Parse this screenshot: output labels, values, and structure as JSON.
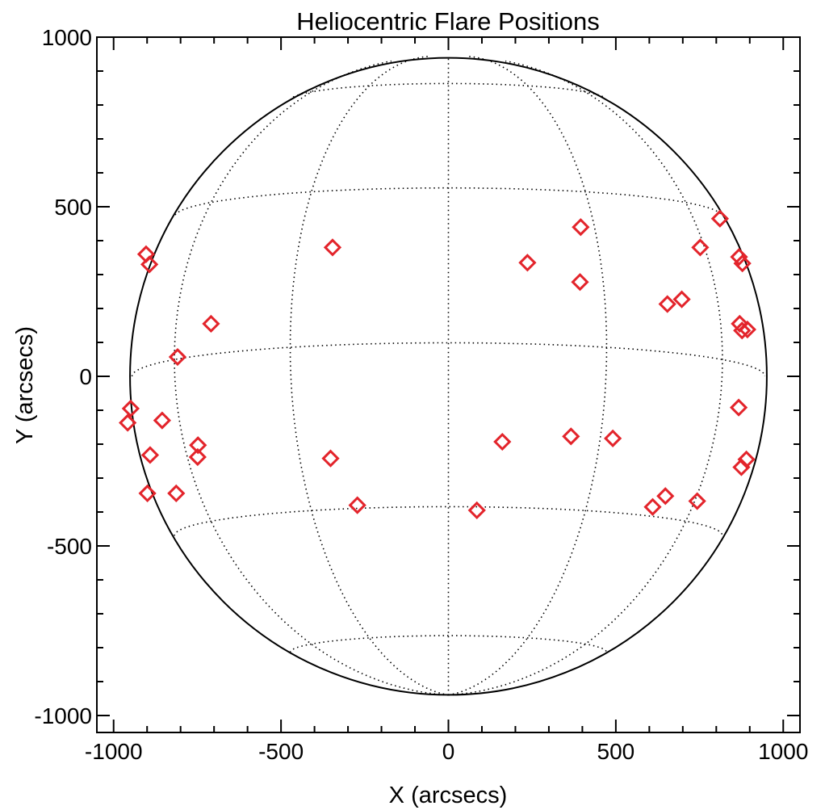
{
  "chart_data": {
    "type": "scatter",
    "title": "Heliocentric Flare Positions",
    "xlabel": "X (arcsecs)",
    "ylabel": "Y (arcsecs)",
    "xlim": [
      -1050,
      1050
    ],
    "ylim": [
      -1050,
      1000
    ],
    "xticks": [
      -1000,
      -500,
      0,
      500,
      1000
    ],
    "yticks": [
      -1000,
      -500,
      0,
      500,
      1000
    ],
    "xtick_labels": [
      "-1000",
      "-500",
      "0",
      "500",
      "1000"
    ],
    "ytick_labels": [
      "-1000",
      "-500",
      "0",
      "500",
      "1000"
    ],
    "solar_radius": 945,
    "grid": "heliographic latitude/longitude every 30 degrees, dotted",
    "marker": "diamond",
    "marker_color": "#e3242b",
    "points": [
      {
        "x": -903,
        "y": 360
      },
      {
        "x": -893,
        "y": 330
      },
      {
        "x": -709,
        "y": 155
      },
      {
        "x": -809,
        "y": 57
      },
      {
        "x": -949,
        "y": -95
      },
      {
        "x": -958,
        "y": -137
      },
      {
        "x": -855,
        "y": -130
      },
      {
        "x": -891,
        "y": -232
      },
      {
        "x": -748,
        "y": -203
      },
      {
        "x": -749,
        "y": -238
      },
      {
        "x": -899,
        "y": -345
      },
      {
        "x": -813,
        "y": -345
      },
      {
        "x": -346,
        "y": 380
      },
      {
        "x": -352,
        "y": -242
      },
      {
        "x": -272,
        "y": -380
      },
      {
        "x": 85,
        "y": -395
      },
      {
        "x": 161,
        "y": -193
      },
      {
        "x": 236,
        "y": 335
      },
      {
        "x": 395,
        "y": 440
      },
      {
        "x": 393,
        "y": 278
      },
      {
        "x": 366,
        "y": -177
      },
      {
        "x": 491,
        "y": -183
      },
      {
        "x": 610,
        "y": -385
      },
      {
        "x": 648,
        "y": -353
      },
      {
        "x": 743,
        "y": -368
      },
      {
        "x": 654,
        "y": 213
      },
      {
        "x": 697,
        "y": 227
      },
      {
        "x": 752,
        "y": 380
      },
      {
        "x": 811,
        "y": 465
      },
      {
        "x": 868,
        "y": 352
      },
      {
        "x": 878,
        "y": 333
      },
      {
        "x": 870,
        "y": 155
      },
      {
        "x": 877,
        "y": 135
      },
      {
        "x": 893,
        "y": 138
      },
      {
        "x": 867,
        "y": -92
      },
      {
        "x": 875,
        "y": -268
      },
      {
        "x": 890,
        "y": -245
      }
    ]
  }
}
